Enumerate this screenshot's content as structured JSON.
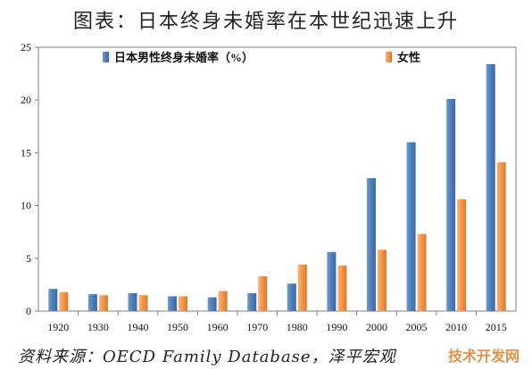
{
  "title": "图表：日本终身未婚率在本世纪迅速上升",
  "source": "资料来源：OECD Family Database，泽平宏观",
  "watermark": "技术开发网",
  "chart_data": {
    "type": "bar",
    "title": "图表：日本终身未婚率在本世纪迅速上升",
    "categories": [
      "1920",
      "1930",
      "1940",
      "1950",
      "1960",
      "1970",
      "1980",
      "1990",
      "2000",
      "2005",
      "2010",
      "2015"
    ],
    "series": [
      {
        "name": "日本男性终身未婚率（%）",
        "color": "#4f81bd",
        "values": [
          2.1,
          1.6,
          1.7,
          1.4,
          1.3,
          1.7,
          2.6,
          5.6,
          12.6,
          16.0,
          20.1,
          23.4
        ]
      },
      {
        "name": "女性",
        "color": "#f79646",
        "values": [
          1.8,
          1.5,
          1.5,
          1.4,
          1.9,
          3.3,
          4.4,
          4.3,
          5.8,
          7.3,
          10.6,
          14.1
        ]
      }
    ],
    "ylim": [
      0,
      25
    ],
    "yticks": [
      0,
      5,
      10,
      15,
      20,
      25
    ],
    "grid": false,
    "legend": "top"
  }
}
